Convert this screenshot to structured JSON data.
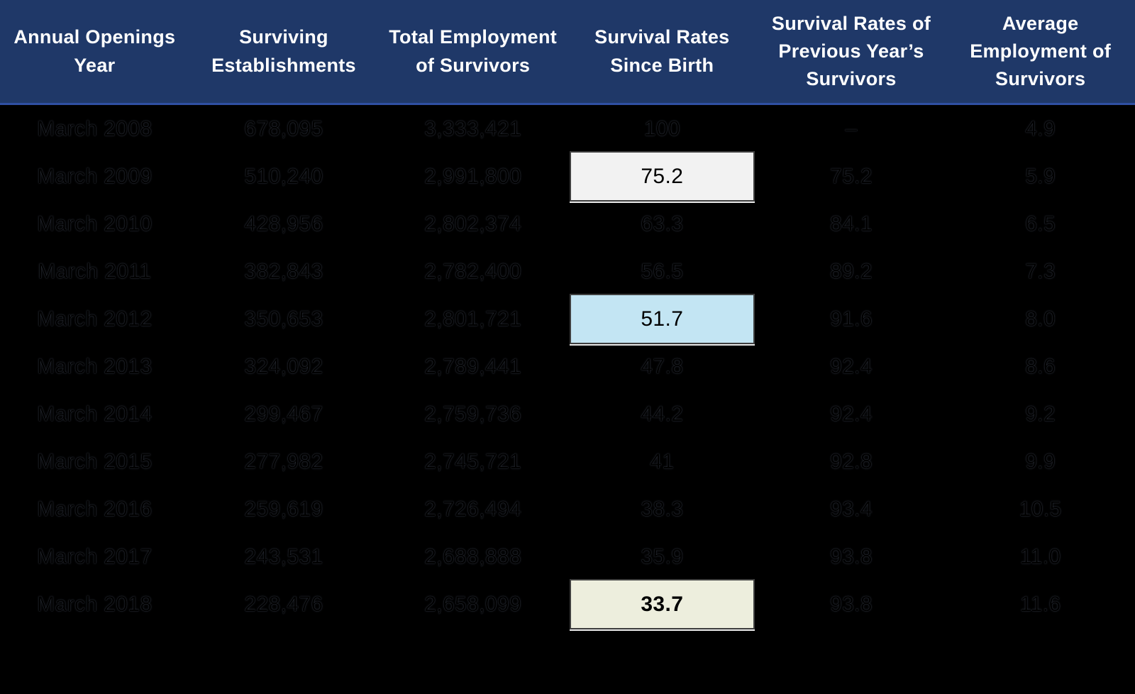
{
  "chart_data": {
    "type": "table",
    "columns": [
      "Annual Openings Year",
      "Surviving Establishments",
      "Total Employment of Survivors",
      "Survival Rates Since Birth",
      "Survival Rates of Previous Year’s Survivors",
      "Average Employment of Survivors"
    ],
    "rows": [
      [
        "March 2008",
        "678,095",
        "3,333,421",
        "100",
        "–",
        "4.9"
      ],
      [
        "March 2009",
        "510,240",
        "2,991,800",
        "75.2",
        "75.2",
        "5.9"
      ],
      [
        "March 2010",
        "428,956",
        "2,802,374",
        "63.3",
        "84.1",
        "6.5"
      ],
      [
        "March 2011",
        "382,843",
        "2,782,400",
        "56.5",
        "89.2",
        "7.3"
      ],
      [
        "March 2012",
        "350,653",
        "2,801,721",
        "51.7",
        "91.6",
        "8.0"
      ],
      [
        "March 2013",
        "324,092",
        "2,789,441",
        "47.8",
        "92.4",
        "8.6"
      ],
      [
        "March 2014",
        "299,467",
        "2,759,736",
        "44.2",
        "92.4",
        "9.2"
      ],
      [
        "March 2015",
        "277,982",
        "2,745,721",
        "41",
        "92.8",
        "9.9"
      ],
      [
        "March 2016",
        "259,619",
        "2,726,494",
        "38.3",
        "93.4",
        "10.5"
      ],
      [
        "March 2017",
        "243,531",
        "2,688,888",
        "35.9",
        "93.8",
        "11.0"
      ],
      [
        "March 2018",
        "228,476",
        "2,658,099",
        "33.7",
        "93.8",
        "11.6"
      ]
    ],
    "highlighted_cells": [
      {
        "row_index": 1,
        "col_index": 3,
        "value": "75.2",
        "style": "white",
        "bold": false
      },
      {
        "row_index": 4,
        "col_index": 3,
        "value": "51.7",
        "style": "blue",
        "bold": false
      },
      {
        "row_index": 10,
        "col_index": 3,
        "value": "33.7",
        "style": "cream",
        "bold": true
      }
    ],
    "title": "",
    "layout": {
      "header_position": "top",
      "grid": "off"
    }
  },
  "colors": {
    "header_bg": "#1F3868",
    "header_text": "#FFFFFF",
    "header_border": "#2F4FA2",
    "background": "#000000",
    "data_text": "#000000",
    "hl_white": "#F2F2F2",
    "hl_blue": "#C3E5F3",
    "hl_cream": "#EDEEDD",
    "hl_border": "#3F3F3F"
  }
}
